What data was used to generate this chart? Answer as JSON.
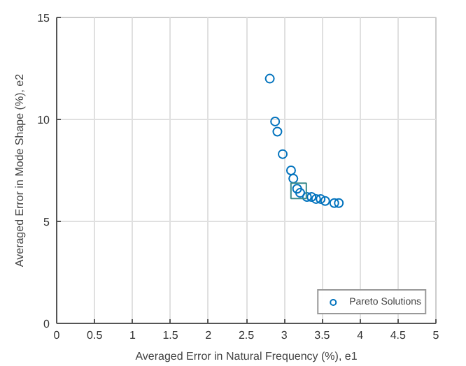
{
  "chart_data": {
    "type": "scatter",
    "xlabel": "Averaged Error in Natural Frequency (%), e1",
    "ylabel": "Averaged Error in Mode Shape (%), e2",
    "xlim": [
      0,
      5
    ],
    "ylim": [
      0,
      15
    ],
    "xticks": [
      0,
      0.5,
      1,
      1.5,
      2,
      2.5,
      3,
      3.5,
      4,
      4.5,
      5
    ],
    "yticks": [
      0,
      5,
      10,
      15
    ],
    "grid": true,
    "legend": "bottom right",
    "series": [
      {
        "name": "Pareto Solutions",
        "color": "#0072bd",
        "marker": "circle",
        "x": [
          2.81,
          2.88,
          2.91,
          2.98,
          3.09,
          3.12,
          3.17,
          3.21,
          3.3,
          3.36,
          3.42,
          3.48,
          3.54,
          3.66,
          3.72
        ],
        "values": [
          12.0,
          9.9,
          9.4,
          8.3,
          7.5,
          7.1,
          6.6,
          6.4,
          6.2,
          6.2,
          6.1,
          6.1,
          6.0,
          5.9,
          5.9
        ]
      },
      {
        "color": "#3a8a8a",
        "marker": "square",
        "x": [
          3.19
        ],
        "values": [
          6.5
        ]
      }
    ]
  }
}
